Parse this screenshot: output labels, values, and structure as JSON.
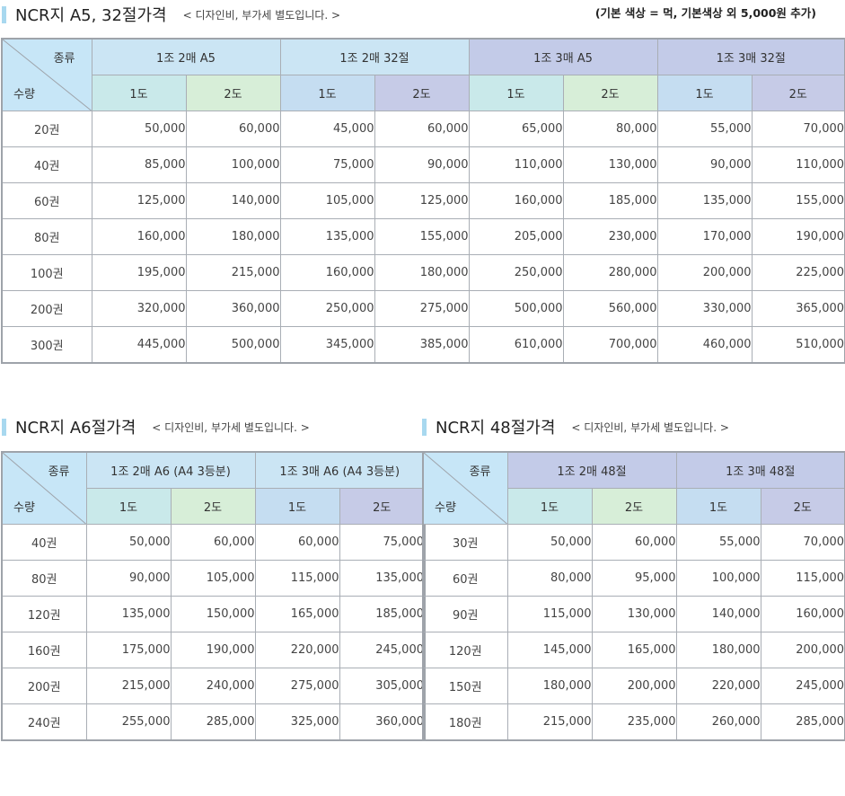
{
  "section1": {
    "title": "NCR지 A5, 32절가격",
    "note": "< 디자인비, 부가세 별도입니다. >",
    "extra": "(기본 색상 = 먹, 기본색상 외 5,000원 추가)",
    "corner_type": "종류",
    "corner_qty": "수량",
    "groups": [
      "1조 2매 A5",
      "1조 2매 32절",
      "1조 3매 A5",
      "1조 3매 32절"
    ],
    "subs": [
      "1도",
      "2도",
      "1도",
      "2도",
      "1도",
      "2도",
      "1도",
      "2도"
    ],
    "rows": [
      {
        "qty": "20권",
        "values": [
          "50,000",
          "60,000",
          "45,000",
          "60,000",
          "65,000",
          "80,000",
          "55,000",
          "70,000"
        ]
      },
      {
        "qty": "40권",
        "values": [
          "85,000",
          "100,000",
          "75,000",
          "90,000",
          "110,000",
          "130,000",
          "90,000",
          "110,000"
        ]
      },
      {
        "qty": "60권",
        "values": [
          "125,000",
          "140,000",
          "105,000",
          "125,000",
          "160,000",
          "185,000",
          "135,000",
          "155,000"
        ]
      },
      {
        "qty": "80권",
        "values": [
          "160,000",
          "180,000",
          "135,000",
          "155,000",
          "205,000",
          "230,000",
          "170,000",
          "190,000"
        ]
      },
      {
        "qty": "100권",
        "values": [
          "195,000",
          "215,000",
          "160,000",
          "180,000",
          "250,000",
          "280,000",
          "200,000",
          "225,000"
        ]
      },
      {
        "qty": "200권",
        "values": [
          "320,000",
          "360,000",
          "250,000",
          "275,000",
          "500,000",
          "560,000",
          "330,000",
          "365,000"
        ]
      },
      {
        "qty": "300권",
        "values": [
          "445,000",
          "500,000",
          "345,000",
          "385,000",
          "610,000",
          "700,000",
          "460,000",
          "510,000"
        ]
      }
    ]
  },
  "section2": {
    "title": "NCR지 A6절가격",
    "note": "< 디자인비, 부가세 별도입니다. >",
    "corner_type": "종류",
    "corner_qty": "수량",
    "groups": [
      "1조 2매 A6 (A4 3등분)",
      "1조 3매 A6 (A4 3등분)"
    ],
    "subs": [
      "1도",
      "2도",
      "1도",
      "2도"
    ],
    "rows": [
      {
        "qty": "40권",
        "values": [
          "50,000",
          "60,000",
          "60,000",
          "75,000"
        ]
      },
      {
        "qty": "80권",
        "values": [
          "90,000",
          "105,000",
          "115,000",
          "135,000"
        ]
      },
      {
        "qty": "120권",
        "values": [
          "135,000",
          "150,000",
          "165,000",
          "185,000"
        ]
      },
      {
        "qty": "160권",
        "values": [
          "175,000",
          "190,000",
          "220,000",
          "245,000"
        ]
      },
      {
        "qty": "200권",
        "values": [
          "215,000",
          "240,000",
          "275,000",
          "305,000"
        ]
      },
      {
        "qty": "240권",
        "values": [
          "255,000",
          "285,000",
          "325,000",
          "360,000"
        ]
      }
    ]
  },
  "section3": {
    "title": "NCR지 48절가격",
    "note": "< 디자인비, 부가세 별도입니다. >",
    "corner_type": "종류",
    "corner_qty": "수량",
    "groups": [
      "1조 2매 48절",
      "1조 3매 48절"
    ],
    "subs": [
      "1도",
      "2도",
      "1도",
      "2도"
    ],
    "rows": [
      {
        "qty": "30권",
        "values": [
          "50,000",
          "60,000",
          "55,000",
          "70,000"
        ]
      },
      {
        "qty": "60권",
        "values": [
          "80,000",
          "95,000",
          "100,000",
          "115,000"
        ]
      },
      {
        "qty": "90권",
        "values": [
          "115,000",
          "130,000",
          "140,000",
          "160,000"
        ]
      },
      {
        "qty": "120권",
        "values": [
          "145,000",
          "165,000",
          "180,000",
          "200,000"
        ]
      },
      {
        "qty": "150권",
        "values": [
          "180,000",
          "200,000",
          "220,000",
          "245,000"
        ]
      },
      {
        "qty": "180권",
        "values": [
          "215,000",
          "235,000",
          "260,000",
          "285,000"
        ]
      }
    ]
  },
  "colors": {
    "accent_bar": "#a8d8ef",
    "corner_bg": "#c7e6f7",
    "teal": "#c9e9ea",
    "green": "#d7eed8",
    "light_blue": "#c5ddf1",
    "lavender": "#c6cbe7"
  }
}
